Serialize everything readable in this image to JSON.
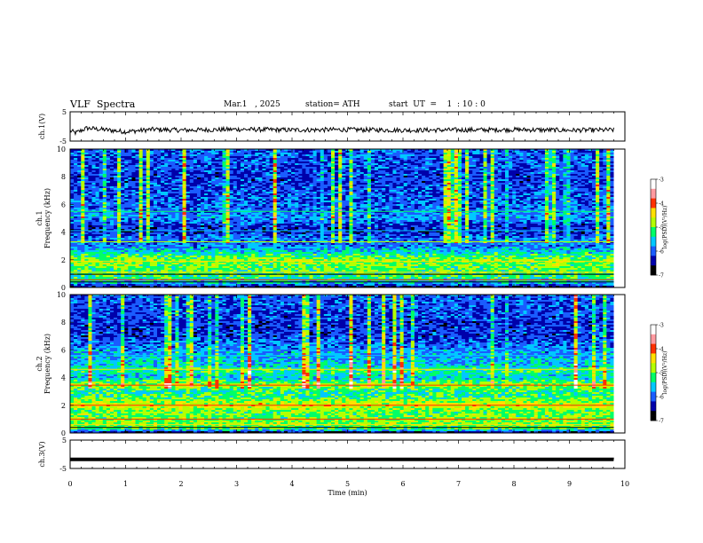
{
  "header": {
    "title": "VLF  Spectra",
    "date": "Mar.1   , 2025",
    "station": "station= ATH",
    "start": "start  UT  =    1  : 10 : 0"
  },
  "colors": {
    "spectrogram_scale": [
      "#000000",
      "#0000aa",
      "#1a5cff",
      "#00c8ff",
      "#00ff66",
      "#b4ff00",
      "#ffe000",
      "#ff3000",
      "#ff9aa0",
      "#ffffff"
    ]
  },
  "chart_data": [
    {
      "type": "line",
      "name": "ch1-waveform",
      "ylabel": "ch.1(V)",
      "yticks": [
        "5",
        "-5"
      ],
      "ylim": [
        -5,
        5
      ],
      "xlim": [
        0,
        10
      ],
      "x": [
        0,
        0.1,
        0.3,
        0.5,
        1.0,
        1.5,
        2.0,
        3.0,
        4.0,
        5.0,
        6.0,
        7.0,
        8.0,
        9.0,
        9.8
      ],
      "values": [
        -1.5,
        -2.2,
        -0.6,
        -0.9,
        -1.8,
        -1.0,
        -1.3,
        -1.0,
        -1.2,
        -1.1,
        -1.3,
        -1.2,
        -1.1,
        -1.3,
        -1.2
      ]
    },
    {
      "type": "heatmap",
      "name": "ch1-spectrogram",
      "ylabel": "ch.1\nFrequency  (kHz)",
      "yticks": [
        "0",
        "2",
        "4",
        "6",
        "8",
        "10"
      ],
      "ylim": [
        0,
        10
      ],
      "xlim": [
        0,
        9.8
      ],
      "colorbar": {
        "label": "log(PSD)(V²/Hz)",
        "ticks": [
          "-3",
          "-4",
          "-5",
          "-6",
          "-7"
        ],
        "range": [
          -7,
          -3
        ]
      },
      "profile_khz": [
        0,
        0.3,
        0.8,
        1.2,
        1.6,
        2.0,
        2.5,
        3.0,
        3.5,
        4.0,
        4.5,
        5.0,
        6.0,
        7.0,
        8.0,
        9.0,
        10.0
      ],
      "profile_log_psd": [
        -6.8,
        -5.6,
        -5.2,
        -5.1,
        -5.0,
        -4.9,
        -5.4,
        -5.9,
        -5.9,
        -6.3,
        -6.2,
        -5.8,
        -6.0,
        -6.1,
        -6.2,
        -6.1,
        -6.0
      ]
    },
    {
      "type": "heatmap",
      "name": "ch2-spectrogram",
      "ylabel": "ch.2\nFrequency  (kHz)",
      "yticks": [
        "0",
        "2",
        "4",
        "6",
        "8",
        "10"
      ],
      "ylim": [
        0,
        10
      ],
      "xlim": [
        0,
        9.8
      ],
      "colorbar": {
        "label": "log(PSD)(V²/Hz)",
        "ticks": [
          "-3",
          "-4",
          "-5",
          "-6",
          "-7"
        ],
        "range": [
          -7,
          -3
        ]
      },
      "profile_khz": [
        0,
        0.3,
        0.8,
        1.2,
        1.6,
        2.0,
        2.5,
        3.0,
        3.5,
        4.0,
        4.5,
        5.0,
        6.0,
        7.0,
        8.0,
        9.0,
        10.0
      ],
      "profile_log_psd": [
        -6.8,
        -5.1,
        -4.9,
        -5.0,
        -5.0,
        -4.5,
        -5.1,
        -5.3,
        -4.8,
        -5.6,
        -5.2,
        -5.6,
        -5.8,
        -6.2,
        -6.2,
        -6.1,
        -6.0
      ]
    },
    {
      "type": "line",
      "name": "ch3-waveform",
      "ylabel": "ch.3(V)",
      "yticks": [
        "5",
        "-5"
      ],
      "ylim": [
        -5,
        5
      ],
      "xlim": [
        0,
        10
      ],
      "x": [
        0,
        9.8
      ],
      "values": [
        -1.8,
        -1.8
      ]
    }
  ],
  "xaxis": {
    "label": "Time  (min)",
    "ticks": [
      "0",
      "1",
      "2",
      "3",
      "4",
      "5",
      "6",
      "7",
      "8",
      "9",
      "10"
    ]
  }
}
